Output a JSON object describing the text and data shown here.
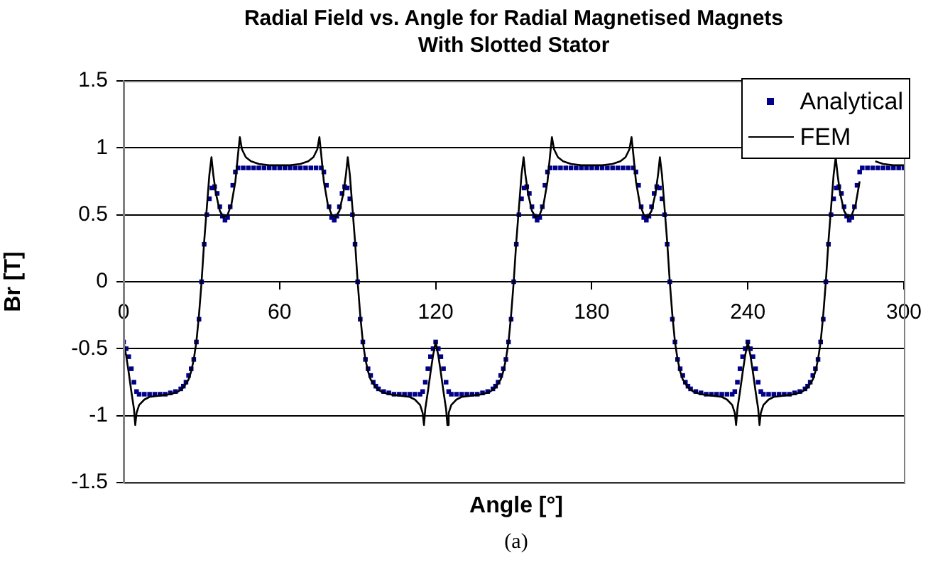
{
  "chart_data": {
    "type": "line",
    "title": "Radial Field vs. Angle for Radial Magnetised Magnets\nWith Slotted Stator",
    "xlabel": "Angle [°]",
    "ylabel": "Br [T]",
    "annotations": [
      "(a)"
    ],
    "xlim": [
      0,
      300
    ],
    "xticks": [
      0,
      60,
      120,
      180,
      240,
      300
    ],
    "ylim": [
      -1.5,
      1.5
    ],
    "yticks": [
      -1.5,
      -1,
      -0.5,
      0,
      0.5,
      1,
      1.5
    ],
    "grid": "y",
    "legend": "top right",
    "series": [
      {
        "name": "Analytical",
        "type": "scatter",
        "marker": "square",
        "color": "#00008b",
        "x": [
          0,
          1,
          2,
          3,
          4,
          5,
          6,
          8,
          10,
          12,
          14,
          16,
          18,
          20,
          22,
          23,
          24,
          25,
          26,
          27,
          28,
          29,
          30,
          31,
          32,
          33,
          34,
          35,
          36,
          37,
          38,
          39,
          40,
          41,
          42,
          43,
          44,
          46,
          48,
          50,
          52,
          54,
          56,
          58,
          60,
          62,
          64,
          66,
          68,
          70,
          72,
          74,
          76,
          77,
          78,
          79,
          80,
          81,
          82,
          83,
          84,
          85,
          86,
          87,
          88,
          89,
          90,
          91,
          92,
          93,
          94,
          95,
          96,
          97,
          98,
          100,
          102,
          104,
          106,
          108,
          110,
          112,
          114,
          115,
          116,
          117,
          118,
          119,
          120,
          121,
          122,
          123,
          124,
          125,
          126,
          128,
          130,
          132,
          134,
          136,
          138,
          140,
          142,
          143,
          144,
          145,
          146,
          147,
          148,
          149,
          150,
          151,
          152,
          153,
          154,
          155,
          156,
          157,
          158,
          159,
          160,
          161,
          162,
          163,
          164,
          166,
          168,
          170,
          172,
          174,
          176,
          178,
          180,
          182,
          184,
          186,
          188,
          190,
          192,
          194,
          196,
          197,
          198,
          199,
          200,
          201,
          202,
          203,
          204,
          205,
          206,
          207,
          208,
          209,
          210,
          211,
          212,
          213,
          214,
          215,
          216,
          217,
          218,
          220,
          222,
          224,
          226,
          228,
          230,
          232,
          234,
          235,
          236,
          237,
          238,
          239,
          240,
          241,
          242,
          243,
          244,
          245,
          246,
          248,
          250,
          252,
          254,
          256,
          258,
          260,
          262,
          263,
          264,
          265,
          266,
          267,
          268,
          269,
          270,
          271,
          272,
          273,
          274,
          275,
          276,
          277,
          278,
          279,
          280,
          281,
          282,
          283,
          284,
          286,
          288,
          290,
          292,
          294,
          296,
          298,
          300
        ],
        "values": [
          -0.45,
          -0.5,
          -0.56,
          -0.65,
          -0.75,
          -0.82,
          -0.84,
          -0.84,
          -0.84,
          -0.84,
          -0.84,
          -0.84,
          -0.83,
          -0.82,
          -0.8,
          -0.78,
          -0.75,
          -0.7,
          -0.65,
          -0.58,
          -0.45,
          -0.28,
          0,
          0.28,
          0.5,
          0.62,
          0.7,
          0.71,
          0.66,
          0.56,
          0.49,
          0.46,
          0.48,
          0.56,
          0.72,
          0.82,
          0.85,
          0.85,
          0.85,
          0.85,
          0.85,
          0.85,
          0.85,
          0.85,
          0.85,
          0.85,
          0.85,
          0.85,
          0.85,
          0.85,
          0.85,
          0.85,
          0.85,
          0.82,
          0.72,
          0.56,
          0.48,
          0.46,
          0.49,
          0.56,
          0.66,
          0.71,
          0.7,
          0.62,
          0.5,
          0.28,
          0,
          -0.28,
          -0.45,
          -0.58,
          -0.65,
          -0.7,
          -0.75,
          -0.78,
          -0.8,
          -0.82,
          -0.83,
          -0.84,
          -0.84,
          -0.84,
          -0.84,
          -0.84,
          -0.84,
          -0.82,
          -0.75,
          -0.65,
          -0.56,
          -0.5,
          -0.45,
          -0.5,
          -0.56,
          -0.65,
          -0.75,
          -0.82,
          -0.84,
          -0.84,
          -0.84,
          -0.84,
          -0.84,
          -0.84,
          -0.83,
          -0.82,
          -0.8,
          -0.78,
          -0.75,
          -0.7,
          -0.65,
          -0.58,
          -0.45,
          -0.28,
          0,
          0.28,
          0.5,
          0.62,
          0.7,
          0.71,
          0.66,
          0.56,
          0.49,
          0.46,
          0.48,
          0.56,
          0.72,
          0.82,
          0.85,
          0.85,
          0.85,
          0.85,
          0.85,
          0.85,
          0.85,
          0.85,
          0.85,
          0.85,
          0.85,
          0.85,
          0.85,
          0.85,
          0.85,
          0.85,
          0.85,
          0.82,
          0.72,
          0.56,
          0.48,
          0.46,
          0.49,
          0.56,
          0.66,
          0.71,
          0.7,
          0.62,
          0.5,
          0.28,
          0,
          -0.28,
          -0.45,
          -0.58,
          -0.65,
          -0.7,
          -0.75,
          -0.78,
          -0.8,
          -0.82,
          -0.83,
          -0.84,
          -0.84,
          -0.84,
          -0.84,
          -0.84,
          -0.84,
          -0.82,
          -0.75,
          -0.65,
          -0.56,
          -0.5,
          -0.45,
          -0.5,
          -0.56,
          -0.65,
          -0.75,
          -0.82,
          -0.84,
          -0.84,
          -0.84,
          -0.84,
          -0.84,
          -0.84,
          -0.83,
          -0.82,
          -0.8,
          -0.78,
          -0.75,
          -0.7,
          -0.65,
          -0.58,
          -0.45,
          -0.28,
          0,
          0.28,
          0.5,
          0.62,
          0.7,
          0.71,
          0.66,
          0.56,
          0.49,
          0.46,
          0.48,
          0.56,
          0.72,
          0.82,
          0.85,
          0.85,
          0.85,
          0.85,
          0.85,
          0.85,
          0.85,
          0.85,
          0.85
        ]
      },
      {
        "name": "FEM",
        "type": "line",
        "marker": "none",
        "color": "#000000",
        "x": [
          0,
          1,
          2,
          3,
          4,
          4.5,
          5,
          6,
          8,
          10,
          14,
          18,
          21,
          23,
          25,
          26,
          27,
          28,
          29,
          30,
          31,
          32,
          33,
          33.8,
          34.5,
          35.5,
          37,
          38.5,
          40,
          41.5,
          43,
          44,
          44.7,
          45.5,
          47,
          49,
          52,
          56,
          60,
          64,
          68,
          71,
          73,
          74.5,
          75.3,
          76,
          77,
          78.5,
          80,
          81.5,
          83,
          84.5,
          85.5,
          86.2,
          87,
          88,
          89,
          90,
          91,
          92,
          93,
          94,
          95,
          97,
          99,
          102,
          106,
          110,
          112,
          114,
          115,
          115.5,
          116,
          117,
          118,
          119,
          120,
          121,
          122,
          123,
          124,
          124.5,
          125,
          126,
          128,
          130,
          134,
          138,
          141,
          143,
          145,
          146,
          147,
          148,
          149,
          150,
          151,
          152,
          153,
          153.8,
          154.5,
          155.5,
          157,
          158.5,
          160,
          161.5,
          163,
          164,
          164.7,
          165.5,
          167,
          169,
          172,
          176,
          180,
          184,
          188,
          191,
          193,
          194.5,
          195.3,
          196,
          197,
          198.5,
          200,
          201.5,
          203,
          204.5,
          205.5,
          206.2,
          207,
          208,
          209,
          210,
          211,
          212,
          213,
          214,
          215,
          217,
          219,
          222,
          226,
          230,
          232,
          234,
          235,
          235.5,
          236,
          237,
          238,
          239,
          240,
          241,
          242,
          243,
          244,
          244.5,
          245,
          246,
          248,
          250,
          254,
          258,
          261,
          263,
          265,
          266,
          267,
          268,
          269,
          270,
          271,
          272,
          273,
          273.8,
          274.5,
          275.5,
          277,
          278.5,
          280,
          281.5,
          283,
          284,
          284.7,
          285.5,
          287,
          289,
          292,
          296,
          300
        ],
        "values": [
          -0.45,
          -0.55,
          -0.68,
          -0.82,
          -0.95,
          -1.07,
          -0.98,
          -0.92,
          -0.88,
          -0.86,
          -0.85,
          -0.84,
          -0.82,
          -0.79,
          -0.73,
          -0.67,
          -0.58,
          -0.45,
          -0.25,
          0,
          0.3,
          0.55,
          0.8,
          0.93,
          0.8,
          0.66,
          0.53,
          0.48,
          0.5,
          0.58,
          0.75,
          0.95,
          1.08,
          0.99,
          0.93,
          0.9,
          0.88,
          0.87,
          0.87,
          0.87,
          0.88,
          0.9,
          0.93,
          0.99,
          1.08,
          0.95,
          0.75,
          0.58,
          0.5,
          0.48,
          0.53,
          0.66,
          0.8,
          0.93,
          0.8,
          0.55,
          0.3,
          0,
          -0.25,
          -0.45,
          -0.58,
          -0.67,
          -0.73,
          -0.79,
          -0.82,
          -0.84,
          -0.85,
          -0.86,
          -0.88,
          -0.92,
          -0.98,
          -1.07,
          -0.95,
          -0.82,
          -0.68,
          -0.55,
          -0.45,
          -0.55,
          -0.68,
          -0.82,
          -0.95,
          -1.07,
          -0.98,
          -0.92,
          -0.88,
          -0.86,
          -0.85,
          -0.84,
          -0.82,
          -0.79,
          -0.73,
          -0.67,
          -0.58,
          -0.45,
          -0.25,
          0,
          0.3,
          0.55,
          0.8,
          0.93,
          0.8,
          0.66,
          0.53,
          0.48,
          0.5,
          0.58,
          0.75,
          0.95,
          1.08,
          0.99,
          0.93,
          0.9,
          0.88,
          0.87,
          0.87,
          0.87,
          0.88,
          0.9,
          0.93,
          0.99,
          1.08,
          0.95,
          0.75,
          0.58,
          0.5,
          0.48,
          0.53,
          0.66,
          0.8,
          0.93,
          0.8,
          0.55,
          0.3,
          0,
          -0.25,
          -0.45,
          -0.58,
          -0.67,
          -0.73,
          -0.79,
          -0.82,
          -0.84,
          -0.85,
          -0.86,
          -0.88,
          -0.92,
          -0.98,
          -1.07,
          -0.95,
          -0.82,
          -0.68,
          -0.55,
          -0.45,
          -0.55,
          -0.68,
          -0.82,
          -0.95,
          -1.07,
          -0.98,
          -0.92,
          -0.88,
          -0.86,
          -0.85,
          -0.84,
          -0.82,
          -0.79,
          -0.73,
          -0.67,
          -0.58,
          -0.45,
          -0.25,
          0,
          0.3,
          0.55,
          0.8,
          0.93,
          0.8,
          0.66,
          0.53,
          0.48,
          0.5,
          0.58,
          0.75,
          null,
          null,
          null,
          null,
          0.9,
          0.88,
          0.87,
          0.87
        ]
      }
    ]
  }
}
